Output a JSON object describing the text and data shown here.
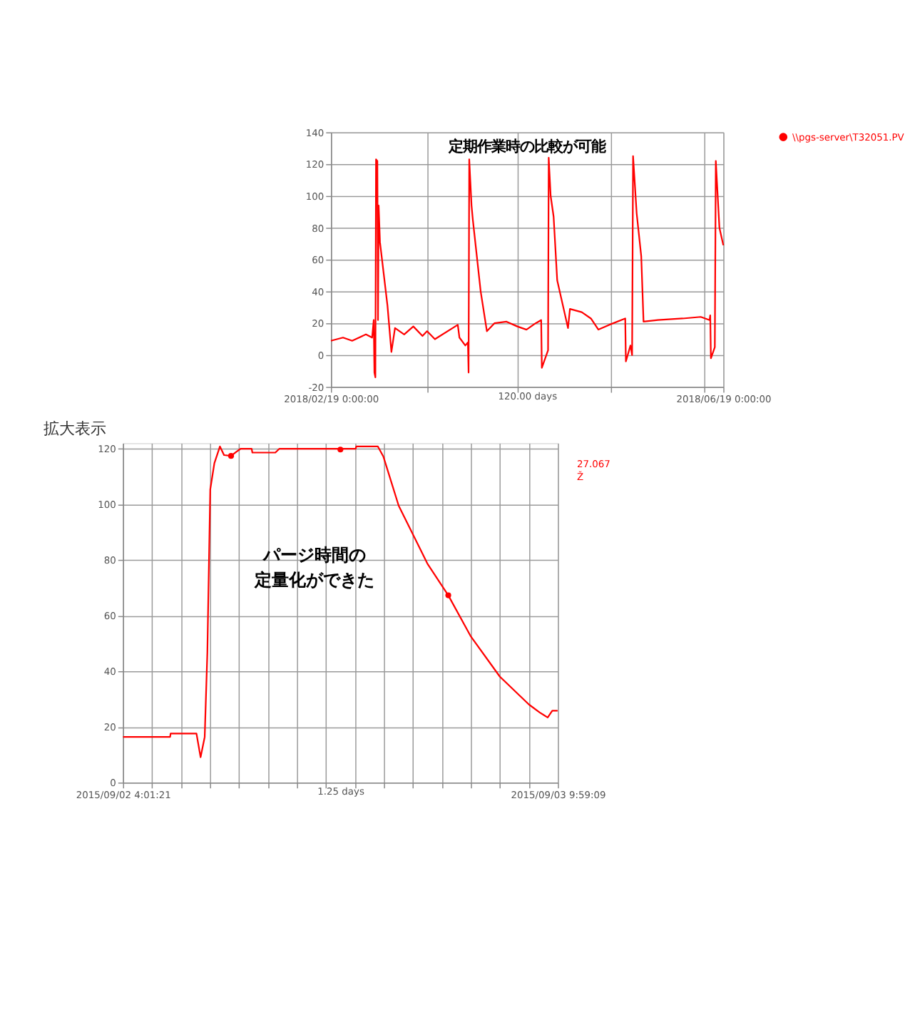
{
  "chart_data": [
    {
      "type": "line",
      "annotations": [
        "定期作業時の比較が可能"
      ],
      "xlabel": "120.00 days",
      "x": [
        "2018-02-19T00:00",
        "2018-02-22T16:48",
        "2018-02-25T12:00",
        "2018-03-01T16:48",
        "2018-03-03T14:24",
        "2018-03-04T02:24",
        "2018-03-04T07:12",
        "2018-03-04T14:24",
        "2018-03-04T19:12",
        "2018-03-05T04:48",
        "2018-03-05T09:36",
        "2018-03-05T14:24",
        "2018-03-06T00:00",
        "2018-03-08T07:12",
        "2018-03-09T12:00",
        "2018-03-10T14:24",
        "2018-03-13T09:36",
        "2018-03-16T04:48",
        "2018-03-19T00:00",
        "2018-03-20T09:36",
        "2018-03-22T19:12",
        "2018-03-29T19:12",
        "2018-03-30T07:12",
        "2018-04-01T02:24",
        "2018-04-01T21:36",
        "2018-04-02T02:24",
        "2018-04-02T07:12",
        "2018-04-03T00:00",
        "2018-04-03T09:36",
        "2018-04-05T19:12",
        "2018-04-07T16:48",
        "2018-04-10T00:00",
        "2018-04-13T16:48",
        "2018-04-17T00:00",
        "2018-04-19T19:12",
        "2018-04-22T14:24",
        "2018-04-24T07:12",
        "2018-04-24T12:00",
        "2018-04-26T09:36",
        "2018-04-26T14:24",
        "2018-04-27T04:48",
        "2018-04-28T02:24",
        "2018-04-29T04:48",
        "2018-05-02T12:00",
        "2018-05-03T02:24",
        "2018-05-06T16:48",
        "2018-05-09T12:00",
        "2018-05-11T19:12",
        "2018-05-15T02:24",
        "2018-05-20T00:00",
        "2018-05-20T04:48",
        "2018-05-21T14:24",
        "2018-05-22T02:24",
        "2018-05-22T09:36",
        "2018-05-23T12:00",
        "2018-05-24T21:36",
        "2018-05-25T14:24",
        "2018-05-30T00:00",
        "2018-06-06T14:24",
        "2018-06-12T02:24",
        "2018-06-14T19:12",
        "2018-06-15T00:00",
        "2018-06-15T04:48",
        "2018-06-16T09:36",
        "2018-06-16T16:48",
        "2018-06-17T19:12",
        "2018-06-19T00:00"
      ],
      "series": [
        {
          "color": "#ff0000",
          "values": [
            9,
            11,
            9,
            13,
            11,
            22,
            -11,
            -14,
            123,
            122,
            22,
            94,
            71,
            31,
            2,
            17,
            13,
            18,
            12,
            15,
            10,
            19,
            11,
            6,
            8,
            -11,
            123,
            94,
            85,
            40,
            15,
            20,
            21,
            18,
            16,
            20,
            22,
            -8,
            3,
            124,
            100,
            87,
            47,
            17,
            29,
            27,
            23,
            16,
            19,
            23,
            -4,
            6,
            0,
            125,
            89,
            62,
            21,
            22,
            23,
            24,
            22,
            25,
            -2,
            5,
            122,
            80,
            69
          ]
        }
      ],
      "xlim": [
        "2018-02-19",
        "2018-06-19"
      ],
      "xticks": [
        {
          "value": "2018-02-19",
          "label": "2018/02/19 0:00:00"
        },
        {
          "value": "2018-03-20T12:00",
          "label": null
        },
        {
          "value": "2018-04-17",
          "label": null
        },
        {
          "value": "2018-05-15T12:00",
          "label": null
        },
        {
          "value": "2018-06-13",
          "label": null
        },
        {
          "value": "2018-06-19",
          "label": "2018/06/19 0:00:00"
        }
      ],
      "ylim": [
        -20,
        140
      ],
      "yticks": [
        -20,
        0,
        20,
        40,
        60,
        80,
        100,
        120,
        140
      ],
      "grid": true
    },
    {
      "type": "line",
      "title": "拡大表示",
      "annotations": [
        "パージ時間の",
        "定量化ができた",
        "27.067",
        "Ž"
      ],
      "xlabel": "1.25 days",
      "legend": "top right",
      "x": [
        "2015-09-02T04:01:21",
        "2015-09-02T07:16",
        "2015-09-02T07:18",
        "2015-09-02T09:05",
        "2015-09-02T09:22",
        "2015-09-02T09:39",
        "2015-09-02T09:50",
        "2015-09-02T10:02",
        "2015-09-02T10:19",
        "2015-09-02T10:42",
        "2015-09-02T10:59",
        "2015-09-02T11:28",
        "2015-09-02T11:50",
        "2015-09-02T12:08",
        "2015-09-02T12:53",
        "2015-09-02T12:56",
        "2015-09-02T14:31",
        "2015-09-02T14:48",
        "2015-09-02T20:03",
        "2015-09-02T20:06",
        "2015-09-02T20:37",
        "2015-09-02T21:29",
        "2015-09-02T21:35",
        "2015-09-02T21:58",
        "2015-09-02T23:01",
        "2015-09-03T01:01",
        "2015-09-03T02:26",
        "2015-09-03T03:58",
        "2015-09-03T05:59",
        "2015-09-03T07:59",
        "2015-09-03T08:44",
        "2015-09-03T09:17",
        "2015-09-03T09:36",
        "2015-09-03T09:58"
      ],
      "series": [
        {
          "name": "\\\\pgs-server\\T32051.PV",
          "color": "#ff0000",
          "values": [
            16.4,
            16.4,
            17.6,
            17.6,
            9.1,
            16.4,
            46.8,
            105.4,
            114.8,
            120.8,
            117.7,
            117.4,
            118.9,
            120,
            120,
            118.6,
            118.6,
            120,
            120,
            120.8,
            120.8,
            120.8,
            120.8,
            117.1,
            99.5,
            78.5,
            67.3,
            52.7,
            38.1,
            28.1,
            25.2,
            23.4,
            25.8,
            25.8
          ]
        },
        {
          "type": "scatter",
          "marker": "circle",
          "color": "#ff0000",
          "x": [
            "2015-09-02T11:28",
            "2015-09-02T19:00",
            "2015-09-03T02:26"
          ],
          "values": [
            117.4,
            119.7,
            67.3
          ]
        }
      ],
      "xlim": [
        "2015-09-02T04:01:21",
        "2015-09-03T09:59:09"
      ],
      "xticks": [
        {
          "value": "2015-09-02T04:01:21",
          "label": "2015/09/02 4:01:21"
        },
        {
          "value": "2015-09-02T06:01",
          "label": null
        },
        {
          "value": "2015-09-02T08:01",
          "label": null
        },
        {
          "value": "2015-09-02T10:01",
          "label": null
        },
        {
          "value": "2015-09-02T12:01",
          "label": null
        },
        {
          "value": "2015-09-02T14:00",
          "label": null
        },
        {
          "value": "2015-09-02T16:00",
          "label": null
        },
        {
          "value": "2015-09-02T18:00",
          "label": null
        },
        {
          "value": "2015-09-02T20:00",
          "label": null
        },
        {
          "value": "2015-09-02T22:00",
          "label": null
        },
        {
          "value": "2015-09-03T00:00",
          "label": null
        },
        {
          "value": "2015-09-03T02:00",
          "label": null
        },
        {
          "value": "2015-09-03T03:59",
          "label": null
        },
        {
          "value": "2015-09-03T05:59",
          "label": null
        },
        {
          "value": "2015-09-03T07:59",
          "label": null
        },
        {
          "value": "2015-09-03T09:59:09",
          "label": "2015/09/03 9:59:09"
        }
      ],
      "ylim": [
        0,
        122
      ],
      "yticks": [
        0,
        20,
        40,
        60,
        80,
        100,
        120
      ],
      "grid": true
    }
  ]
}
